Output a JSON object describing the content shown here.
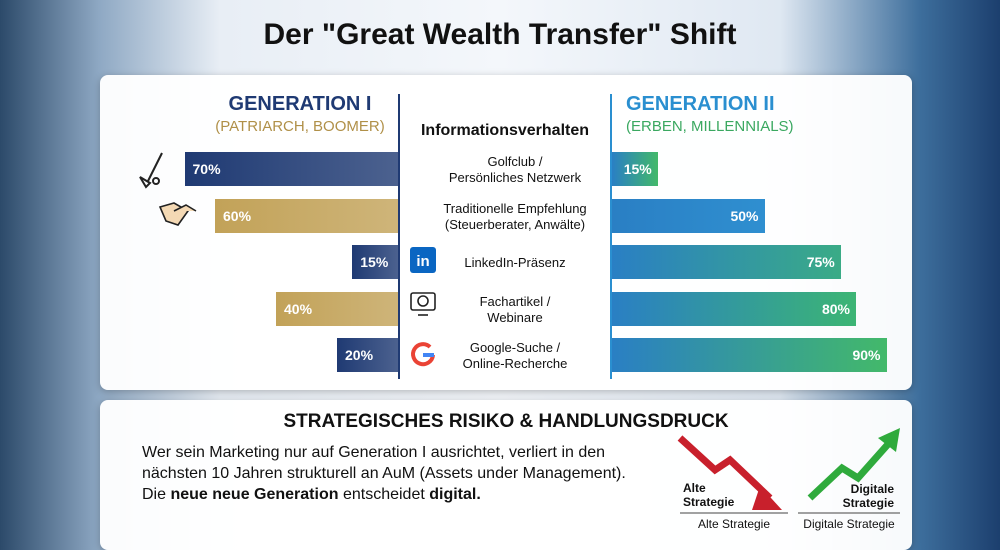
{
  "chart_data": {
    "type": "bar",
    "title": "Der \"Great Wealth Transfer\" Shift",
    "center_heading": "Informationsverhalten",
    "categories": [
      "Golfclub /\nPersönliches Netzwerk",
      "Traditionelle Empfehlung\n(Steuerberater, Anwälte)",
      "LinkedIn-Präsenz",
      "Fachartikel /\nWebinare",
      "Google-Suche /\nOnline-Recherche"
    ],
    "series": [
      {
        "name": "GENERATION I",
        "subtitle": "(PATRIARCH, BOOMER)",
        "color": "#1f3a73",
        "values": [
          70,
          60,
          15,
          40,
          20
        ],
        "value_labels": [
          "70%",
          "60%",
          "15%",
          "40%",
          "20%"
        ],
        "colors": [
          "#1f3a73",
          "#c2a258",
          "#1f3a73",
          "#c2a258",
          "#1f3a73"
        ]
      },
      {
        "name": "GENERATION II",
        "subtitle": "(ERBEN, MILLENNIALS)",
        "color": "#2a8fd0",
        "values": [
          15,
          50,
          75,
          80,
          90
        ],
        "value_labels": [
          "15%",
          "50%",
          "75%",
          "80%",
          "90%"
        ],
        "colors": [
          "#43b96a",
          "#2f8fd0",
          "#3aab86",
          "#3cb574",
          "#43b96a"
        ]
      }
    ]
  },
  "panel": {
    "title": "STRATEGISCHES RISIKO & HANDLUNGSDRUCK",
    "lines": [
      "Wer sein Marketing nur auf Generation I ausrichtet, verliert in den",
      "nächsten 10 Jahren strukturell an AuM (Assets under Management)."
    ],
    "last_line": [
      "Die ",
      "neue neue Generation",
      " entscheidet ",
      "digital."
    ],
    "arrow_labels": [
      "Alte\nStrategie",
      "Digitale\nStrategie"
    ],
    "captions": [
      "Alte Strategie",
      "Digitale Strategie"
    ]
  }
}
